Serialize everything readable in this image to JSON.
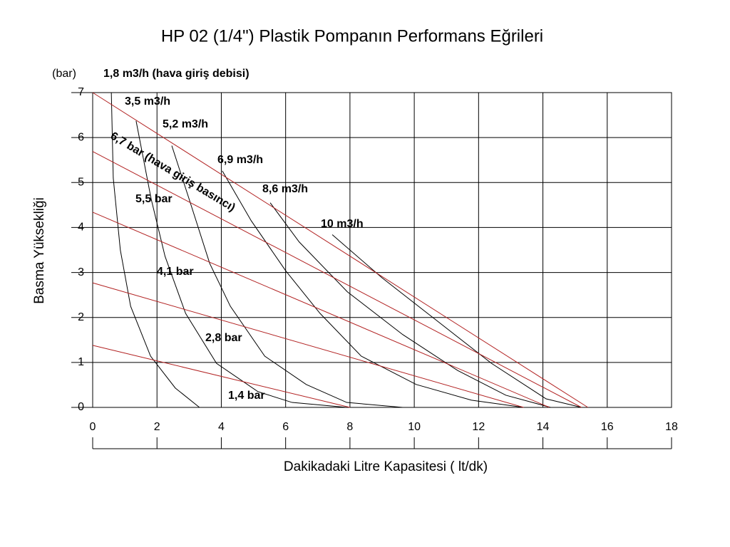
{
  "chart_data": {
    "type": "line",
    "title": "HP 02 (1/4\") Plastik Pompanın Performans Eğrileri",
    "y_unit": "(bar)",
    "y_label": "Basma Yüksekliği",
    "x_label": "Dakikadaki Litre Kapasitesi ( lt/dk)",
    "xlim": [
      0,
      18
    ],
    "ylim": [
      0,
      7
    ],
    "xticks": [
      0,
      2,
      4,
      6,
      8,
      10,
      12,
      14,
      16,
      18
    ],
    "yticks": [
      0,
      1,
      2,
      3,
      4,
      5,
      6,
      7
    ],
    "grid": true,
    "series": [
      {
        "name": "1,8 m3/h (hava giriş debisi)",
        "color": "#000000",
        "x": [
          0.58,
          0.64,
          0.86,
          1.18,
          1.8,
          2.57,
          3.32
        ],
        "values": [
          7,
          5.1,
          3.5,
          2.25,
          1.14,
          0.43,
          0
        ]
      },
      {
        "name": "3,5 m3/h",
        "color": "#000000",
        "x": [
          1.35,
          1.82,
          2.25,
          2.89,
          3.85,
          5.14,
          6.2,
          7.9
        ],
        "values": [
          6.37,
          4.63,
          3.36,
          2.09,
          0.98,
          0.35,
          0.11,
          0
        ]
      },
      {
        "name": "5,2 m3/h",
        "color": "#000000",
        "x": [
          2.46,
          3.0,
          3.64,
          4.28,
          5.35,
          6.64,
          7.9,
          9.64
        ],
        "values": [
          5.82,
          4.63,
          3.2,
          2.25,
          1.14,
          0.51,
          0.11,
          0
        ]
      },
      {
        "name": "6,9 m3/h",
        "color": "#000000",
        "x": [
          4.03,
          4.93,
          6.0,
          7.07,
          8.35,
          10.06,
          11.78,
          13.4
        ],
        "values": [
          5.26,
          4.15,
          3.04,
          2.09,
          1.14,
          0.51,
          0.16,
          0
        ]
      },
      {
        "name": "8,6 m3/h",
        "color": "#000000",
        "x": [
          5.52,
          6.42,
          7.92,
          9.64,
          11.35,
          12.85,
          14.24
        ],
        "values": [
          4.55,
          3.68,
          2.57,
          1.62,
          0.82,
          0.27,
          0
        ]
      },
      {
        "name": "10 m3/h",
        "color": "#000000",
        "x": [
          7.45,
          9.0,
          10.7,
          12.4,
          14.1,
          15.2
        ],
        "values": [
          3.84,
          2.88,
          1.93,
          0.98,
          0.19,
          0
        ]
      },
      {
        "name": "6,7 bar (hava giriş basıncı)",
        "color": "#b22222",
        "x": [
          0,
          15.4
        ],
        "values": [
          7,
          0
        ]
      },
      {
        "name": "5,5 bar",
        "color": "#b22222",
        "x": [
          0,
          15.2
        ],
        "values": [
          5.69,
          0
        ]
      },
      {
        "name": "4,1 bar",
        "color": "#b22222",
        "x": [
          0,
          14.2
        ],
        "values": [
          4.34,
          0
        ]
      },
      {
        "name": "2,8 bar",
        "color": "#b22222",
        "x": [
          0,
          13.4
        ],
        "values": [
          2.77,
          0
        ]
      },
      {
        "name": "1,4 bar",
        "color": "#b22222",
        "x": [
          0,
          8.0
        ],
        "values": [
          1.38,
          0
        ]
      }
    ]
  }
}
